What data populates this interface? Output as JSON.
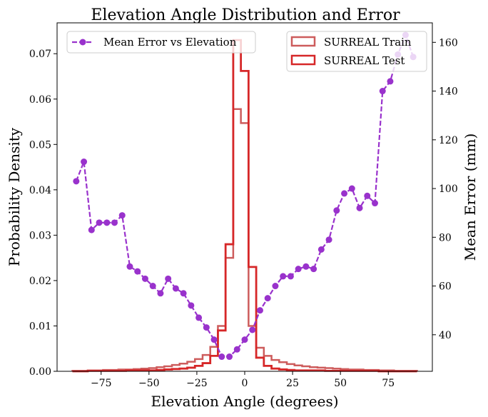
{
  "chart_data": {
    "type": "step-histogram-with-line",
    "title": "Elevation Angle Distribution and Error",
    "xlabel": "Elevation Angle (degrees)",
    "ylabel_left": "Probability Density",
    "ylabel_right": "Mean Error (mm)",
    "xlim": [
      -98,
      98
    ],
    "ylim_left": [
      0,
      0.0768
    ],
    "ylim_right": [
      25,
      168
    ],
    "x_ticks": [
      -75,
      -50,
      -25,
      0,
      25,
      50,
      75
    ],
    "x_tick_labels": [
      "−75",
      "−50",
      "−25",
      "0",
      "25",
      "50",
      "75"
    ],
    "y_left_ticks": [
      0,
      0.01,
      0.02,
      0.03,
      0.04,
      0.05,
      0.06,
      0.07
    ],
    "y_left_tick_labels": [
      "0.00",
      "0.01",
      "0.02",
      "0.03",
      "0.04",
      "0.05",
      "0.06",
      "0.07"
    ],
    "y_right_ticks": [
      40,
      60,
      80,
      100,
      120,
      140,
      160
    ],
    "y_right_tick_labels": [
      "40",
      "60",
      "80",
      "100",
      "120",
      "140",
      "160"
    ],
    "bin_edges": [
      -90,
      -86,
      -82,
      -78,
      -74,
      -70,
      -66,
      -62,
      -58,
      -54,
      -50,
      -46,
      -42,
      -38,
      -34,
      -30,
      -26,
      -22,
      -18,
      -14,
      -10,
      -6,
      -2,
      2,
      6,
      10,
      14,
      18,
      22,
      26,
      30,
      34,
      38,
      42,
      46,
      50,
      54,
      58,
      62,
      66,
      70,
      74,
      78,
      82,
      86,
      90
    ],
    "series": [
      {
        "name": "SURREAL Train",
        "kind": "step",
        "axis": "left",
        "color": "#cd5c5c",
        "values": [
          0.0001,
          0.0001,
          0.0002,
          0.0002,
          0.0003,
          0.0003,
          0.0004,
          0.0004,
          0.0005,
          0.0006,
          0.0007,
          0.0009,
          0.0011,
          0.0014,
          0.0017,
          0.0021,
          0.0027,
          0.0036,
          0.0054,
          0.01,
          0.025,
          0.0578,
          0.0547,
          0.01,
          0.0052,
          0.0034,
          0.0025,
          0.002,
          0.0016,
          0.0013,
          0.0011,
          0.0009,
          0.0008,
          0.0007,
          0.0006,
          0.0005,
          0.0004,
          0.0004,
          0.0003,
          0.0003,
          0.0002,
          0.0002,
          0.0001,
          0.0001,
          0.0001
        ]
      },
      {
        "name": "SURREAL Test",
        "kind": "step",
        "axis": "left",
        "color": "#d62728",
        "values": [
          0.0,
          0.0,
          0.0001,
          0.0001,
          0.0001,
          0.0001,
          0.0001,
          0.0002,
          0.0002,
          0.0002,
          0.0002,
          0.0003,
          0.0004,
          0.0005,
          0.0006,
          0.0008,
          0.0012,
          0.0018,
          0.0034,
          0.009,
          0.028,
          0.073,
          0.0662,
          0.023,
          0.003,
          0.0012,
          0.0006,
          0.0004,
          0.0003,
          0.0002,
          0.0002,
          0.0002,
          0.0002,
          0.0001,
          0.0001,
          0.0001,
          0.0001,
          0.0001,
          0.0001,
          0.0001,
          0.0,
          0.0,
          0.0,
          0.0,
          0.0
        ]
      },
      {
        "name": "Mean Error vs Elevation",
        "kind": "line",
        "axis": "right",
        "color": "#9932cc",
        "x": [
          -88,
          -84,
          -80,
          -76,
          -72,
          -68,
          -64,
          -60,
          -56,
          -52,
          -48,
          -44,
          -40,
          -36,
          -32,
          -28,
          -24,
          -20,
          -16,
          -12,
          -8,
          -4,
          0,
          4,
          8,
          12,
          16,
          20,
          24,
          28,
          32,
          36,
          40,
          44,
          48,
          52,
          56,
          60,
          64,
          68,
          72,
          76,
          80,
          84,
          88
        ],
        "y": [
          103,
          111,
          83,
          86,
          86,
          86,
          89,
          68,
          66,
          63,
          60,
          57,
          63,
          59,
          57,
          52,
          47,
          43,
          38,
          31,
          31,
          34,
          38,
          42,
          50,
          55,
          60,
          64,
          64,
          67,
          68,
          67,
          75,
          79,
          91,
          98,
          100,
          92,
          97,
          94,
          140,
          144,
          155,
          163,
          154
        ]
      }
    ],
    "legend_left": [
      "Mean Error vs Elevation"
    ],
    "legend_right": [
      "SURREAL Train",
      "SURREAL Test"
    ]
  }
}
